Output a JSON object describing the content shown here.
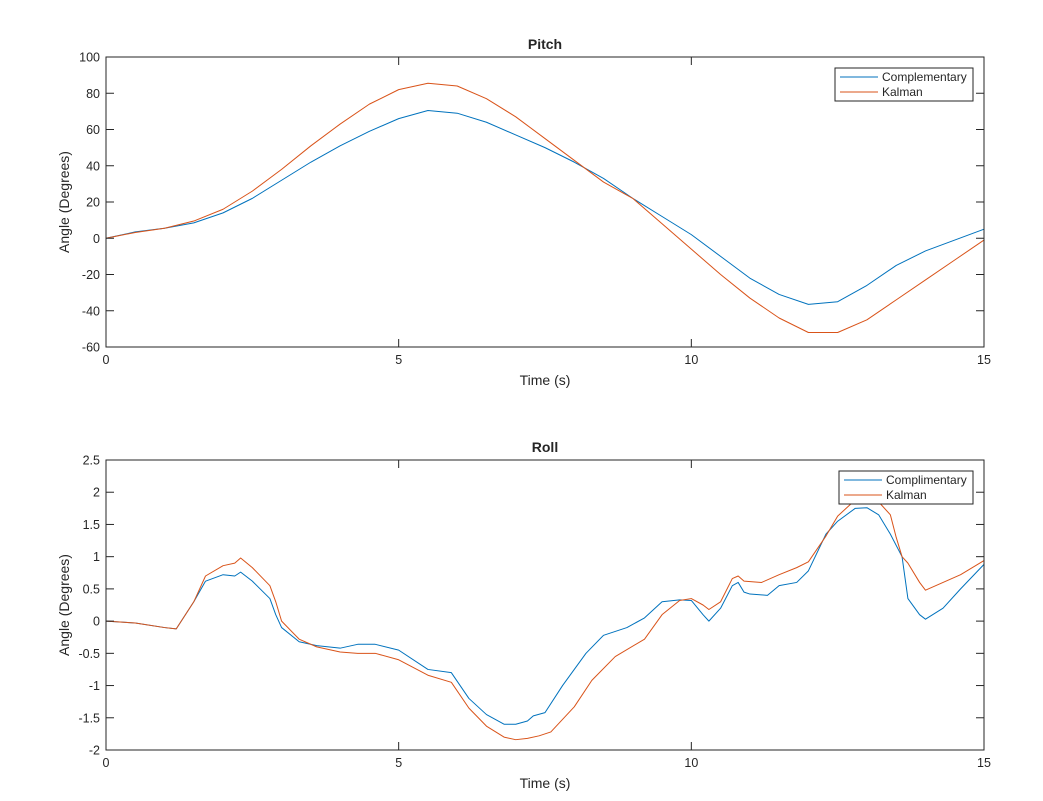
{
  "colors": {
    "complementary": "#0072bd",
    "kalman": "#d95319",
    "axis": "#262626",
    "background": "#ffffff"
  },
  "chart_data": [
    {
      "type": "line",
      "title": "Pitch",
      "xlabel": "Time (s)",
      "ylabel": "Angle (Degrees)",
      "xlim": [
        0,
        15
      ],
      "ylim": [
        -60,
        100
      ],
      "xticks": [
        0,
        5,
        10,
        15
      ],
      "yticks": [
        -60,
        -40,
        -20,
        0,
        20,
        40,
        60,
        80,
        100
      ],
      "grid": false,
      "legend_position": "top-right",
      "series": [
        {
          "name": "Complementary",
          "color": "#0072bd",
          "points": [
            [
              0,
              0
            ],
            [
              0.5,
              3.5
            ],
            [
              1,
              5.5
            ],
            [
              1.5,
              8.5
            ],
            [
              2,
              14
            ],
            [
              2.5,
              22
            ],
            [
              3,
              32
            ],
            [
              3.5,
              42
            ],
            [
              4,
              51
            ],
            [
              4.5,
              59
            ],
            [
              5,
              66
            ],
            [
              5.5,
              70.5
            ],
            [
              6,
              69
            ],
            [
              6.5,
              64
            ],
            [
              7,
              57
            ],
            [
              7.5,
              50
            ],
            [
              8,
              42
            ],
            [
              8.5,
              33
            ],
            [
              9,
              22
            ],
            [
              9.5,
              12
            ],
            [
              10,
              2
            ],
            [
              10.5,
              -10
            ],
            [
              11,
              -22
            ],
            [
              11.5,
              -31
            ],
            [
              12,
              -36.5
            ],
            [
              12.5,
              -35
            ],
            [
              13,
              -26
            ],
            [
              13.5,
              -15
            ],
            [
              14,
              -7
            ],
            [
              14.5,
              -1
            ],
            [
              15,
              5
            ]
          ]
        },
        {
          "name": "Kalman",
          "color": "#d95319",
          "points": [
            [
              0,
              0
            ],
            [
              0.5,
              3.2
            ],
            [
              1,
              5.5
            ],
            [
              1.5,
              9.5
            ],
            [
              2,
              16
            ],
            [
              2.5,
              26
            ],
            [
              3,
              38
            ],
            [
              3.5,
              51
            ],
            [
              4,
              63
            ],
            [
              4.5,
              74
            ],
            [
              5,
              82
            ],
            [
              5.5,
              85.5
            ],
            [
              6,
              84
            ],
            [
              6.5,
              77
            ],
            [
              7,
              67
            ],
            [
              7.5,
              55
            ],
            [
              8,
              43
            ],
            [
              8.5,
              31
            ],
            [
              9,
              22
            ],
            [
              9.5,
              8
            ],
            [
              10,
              -6
            ],
            [
              10.5,
              -20
            ],
            [
              11,
              -33
            ],
            [
              11.5,
              -44
            ],
            [
              12,
              -52
            ],
            [
              12.5,
              -52
            ],
            [
              13,
              -45
            ],
            [
              13.5,
              -34
            ],
            [
              14,
              -23
            ],
            [
              14.5,
              -12
            ],
            [
              15,
              -1
            ]
          ]
        }
      ]
    },
    {
      "type": "line",
      "title": "Roll",
      "xlabel": "Time (s)",
      "ylabel": "Angle (Degrees)",
      "xlim": [
        0,
        15
      ],
      "ylim": [
        -2,
        2.5
      ],
      "xticks": [
        0,
        5,
        10,
        15
      ],
      "yticks": [
        -2,
        -1.5,
        -1,
        -0.5,
        0,
        0.5,
        1,
        1.5,
        2,
        2.5
      ],
      "grid": false,
      "legend_position": "top-right",
      "series": [
        {
          "name": "Complimentary",
          "color": "#0072bd",
          "points": [
            [
              0,
              0
            ],
            [
              0.5,
              -0.03
            ],
            [
              1,
              -0.1
            ],
            [
              1.2,
              -0.12
            ],
            [
              1.5,
              0.3
            ],
            [
              1.7,
              0.62
            ],
            [
              2,
              0.72
            ],
            [
              2.2,
              0.7
            ],
            [
              2.3,
              0.76
            ],
            [
              2.5,
              0.62
            ],
            [
              2.8,
              0.35
            ],
            [
              2.9,
              0.1
            ],
            [
              3,
              -0.1
            ],
            [
              3.3,
              -0.32
            ],
            [
              3.6,
              -0.38
            ],
            [
              4,
              -0.42
            ],
            [
              4.3,
              -0.36
            ],
            [
              4.6,
              -0.36
            ],
            [
              5,
              -0.45
            ],
            [
              5.5,
              -0.75
            ],
            [
              5.9,
              -0.8
            ],
            [
              6.2,
              -1.2
            ],
            [
              6.5,
              -1.45
            ],
            [
              6.8,
              -1.6
            ],
            [
              7,
              -1.6
            ],
            [
              7.2,
              -1.55
            ],
            [
              7.3,
              -1.47
            ],
            [
              7.5,
              -1.42
            ],
            [
              7.8,
              -1.0
            ],
            [
              8.2,
              -0.5
            ],
            [
              8.5,
              -0.22
            ],
            [
              8.9,
              -0.1
            ],
            [
              9.2,
              0.05
            ],
            [
              9.5,
              0.3
            ],
            [
              9.8,
              0.33
            ],
            [
              10,
              0.32
            ],
            [
              10.2,
              0.1
            ],
            [
              10.3,
              0.0
            ],
            [
              10.5,
              0.2
            ],
            [
              10.7,
              0.55
            ],
            [
              10.8,
              0.6
            ],
            [
              10.9,
              0.45
            ],
            [
              11,
              0.42
            ],
            [
              11.3,
              0.4
            ],
            [
              11.5,
              0.55
            ],
            [
              11.8,
              0.6
            ],
            [
              12,
              0.78
            ],
            [
              12.3,
              1.35
            ],
            [
              12.5,
              1.55
            ],
            [
              12.8,
              1.75
            ],
            [
              13,
              1.76
            ],
            [
              13.2,
              1.65
            ],
            [
              13.4,
              1.35
            ],
            [
              13.6,
              1.0
            ],
            [
              13.7,
              0.35
            ],
            [
              13.9,
              0.1
            ],
            [
              14,
              0.03
            ],
            [
              14.3,
              0.2
            ],
            [
              14.6,
              0.5
            ],
            [
              15,
              0.88
            ]
          ]
        },
        {
          "name": "Kalman",
          "color": "#d95319",
          "points": [
            [
              0,
              0
            ],
            [
              0.5,
              -0.03
            ],
            [
              1,
              -0.1
            ],
            [
              1.2,
              -0.12
            ],
            [
              1.5,
              0.3
            ],
            [
              1.7,
              0.7
            ],
            [
              2,
              0.86
            ],
            [
              2.2,
              0.9
            ],
            [
              2.3,
              0.98
            ],
            [
              2.5,
              0.83
            ],
            [
              2.8,
              0.55
            ],
            [
              2.9,
              0.3
            ],
            [
              3,
              0.0
            ],
            [
              3.3,
              -0.28
            ],
            [
              3.6,
              -0.4
            ],
            [
              4,
              -0.48
            ],
            [
              4.3,
              -0.5
            ],
            [
              4.6,
              -0.5
            ],
            [
              5,
              -0.6
            ],
            [
              5.5,
              -0.84
            ],
            [
              5.9,
              -0.95
            ],
            [
              6.2,
              -1.35
            ],
            [
              6.5,
              -1.63
            ],
            [
              6.8,
              -1.8
            ],
            [
              7,
              -1.84
            ],
            [
              7.2,
              -1.82
            ],
            [
              7.4,
              -1.78
            ],
            [
              7.6,
              -1.72
            ],
            [
              8,
              -1.33
            ],
            [
              8.3,
              -0.92
            ],
            [
              8.7,
              -0.55
            ],
            [
              9.2,
              -0.28
            ],
            [
              9.5,
              0.1
            ],
            [
              9.8,
              0.32
            ],
            [
              10,
              0.35
            ],
            [
              10.2,
              0.25
            ],
            [
              10.3,
              0.18
            ],
            [
              10.5,
              0.3
            ],
            [
              10.7,
              0.66
            ],
            [
              10.8,
              0.7
            ],
            [
              10.9,
              0.62
            ],
            [
              11.2,
              0.6
            ],
            [
              11.5,
              0.72
            ],
            [
              11.8,
              0.83
            ],
            [
              12,
              0.92
            ],
            [
              12.3,
              1.32
            ],
            [
              12.5,
              1.63
            ],
            [
              12.8,
              1.88
            ],
            [
              13,
              1.93
            ],
            [
              13.2,
              1.85
            ],
            [
              13.4,
              1.65
            ],
            [
              13.5,
              1.3
            ],
            [
              13.6,
              1.0
            ],
            [
              13.7,
              0.9
            ],
            [
              13.9,
              0.6
            ],
            [
              14,
              0.48
            ],
            [
              14.3,
              0.6
            ],
            [
              14.6,
              0.72
            ],
            [
              15,
              0.94
            ]
          ]
        }
      ]
    }
  ]
}
